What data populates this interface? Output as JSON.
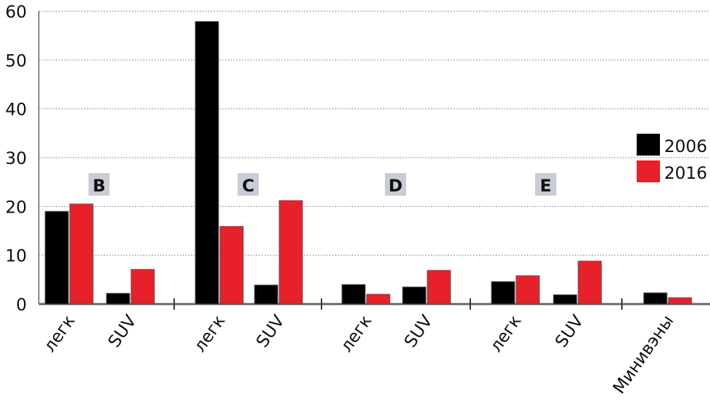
{
  "chart_data": {
    "type": "bar",
    "categories": [
      "легк",
      "SUV",
      "легк",
      "SUV",
      "легк",
      "SUV",
      "легк",
      "SUV",
      "Минивэны"
    ],
    "group_labels": [
      "B",
      "C",
      "D",
      "E"
    ],
    "series": [
      {
        "name": "2006",
        "color": "#000000",
        "values": [
          19.0,
          2.2,
          57.9,
          3.9,
          4.0,
          3.5,
          4.6,
          1.9,
          2.3
        ]
      },
      {
        "name": "2016",
        "color": "#e8202a",
        "values": [
          20.5,
          7.1,
          15.9,
          21.2,
          2.0,
          6.9,
          5.8,
          8.8,
          1.3
        ]
      }
    ],
    "ylim": [
      0,
      60
    ],
    "yticks": [
      0,
      10,
      20,
      30,
      40,
      50,
      60
    ],
    "grid": true,
    "legend": "right"
  }
}
